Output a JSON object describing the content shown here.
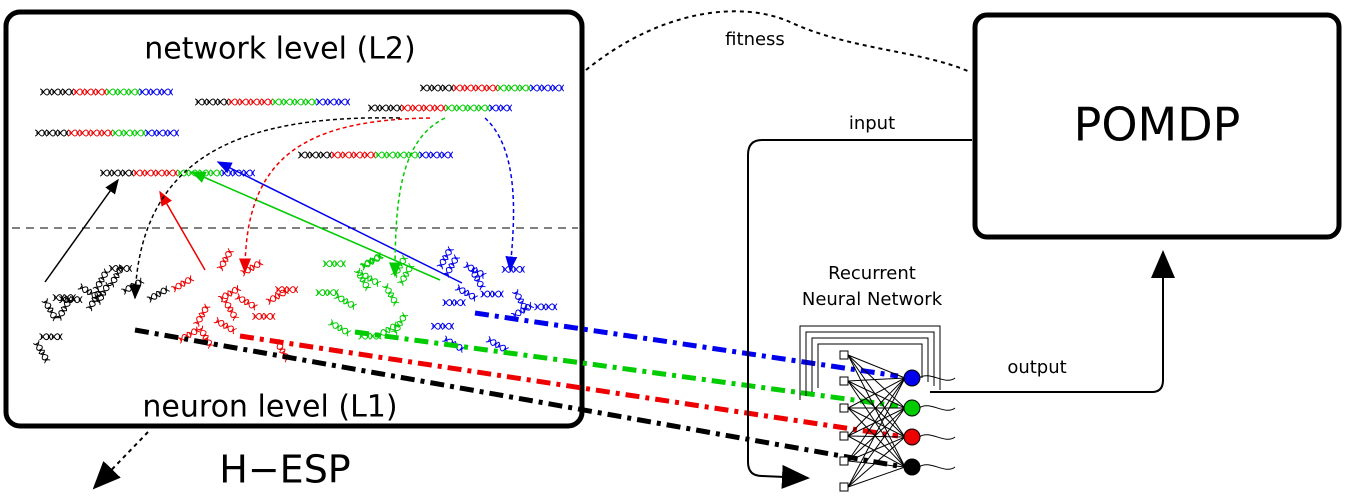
{
  "diagram": {
    "network_level": "network level (L2)",
    "neuron_level": "neuron level (L1)",
    "method": "H−ESP",
    "fitness": "fitness",
    "environment": "POMDP",
    "input": "input",
    "output": "output",
    "network_title": [
      "Recurrent",
      "Neural Network"
    ]
  }
}
